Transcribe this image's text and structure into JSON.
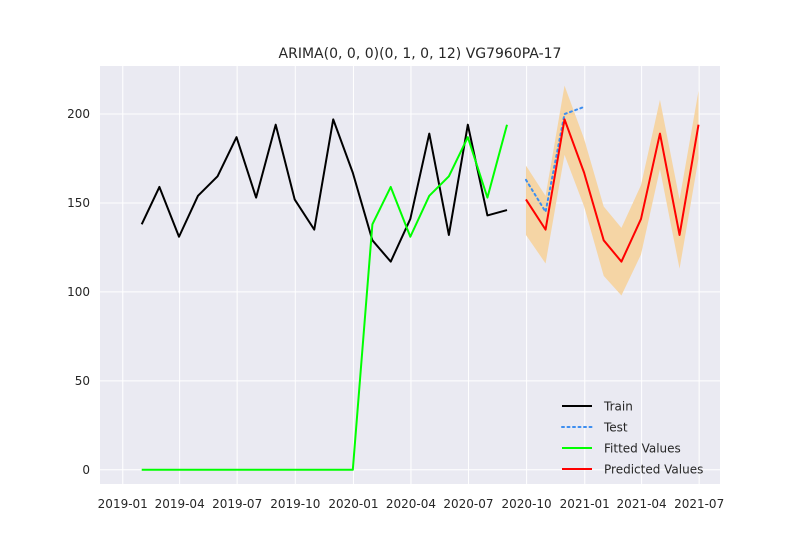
{
  "chart_data": {
    "type": "line",
    "title": "ARIMA(0, 0, 0)(0, 1, 0, 12) VG7960PA-17",
    "xlabel": "",
    "ylabel": "",
    "x_tick_labels": [
      "2019-01",
      "2019-04",
      "2019-07",
      "2019-10",
      "2020-01",
      "2020-04",
      "2020-07",
      "2020-10",
      "2021-01",
      "2021-04",
      "2021-07"
    ],
    "x_ticks": [
      "2019-01-01",
      "2019-04-01",
      "2019-07-01",
      "2019-10-01",
      "2020-01-01",
      "2020-04-01",
      "2020-07-01",
      "2020-10-01",
      "2021-01-01",
      "2021-04-01",
      "2021-07-01"
    ],
    "y_ticks": [
      0,
      50,
      100,
      150,
      200
    ],
    "xlim": [
      "2018-11-26",
      "2021-08-03"
    ],
    "ylim": [
      -8,
      227
    ],
    "grid": true,
    "legend_position": "lower-right",
    "series": [
      {
        "name": "Train",
        "color": "#000000",
        "style": "solid",
        "x": [
          "2019-01-31",
          "2019-02-28",
          "2019-03-31",
          "2019-04-30",
          "2019-05-31",
          "2019-06-30",
          "2019-07-31",
          "2019-08-31",
          "2019-09-30",
          "2019-10-31",
          "2019-11-30",
          "2019-12-31",
          "2020-01-31",
          "2020-02-29",
          "2020-03-31",
          "2020-04-30",
          "2020-05-31",
          "2020-06-30",
          "2020-07-31",
          "2020-08-31"
        ],
        "values": [
          138,
          159,
          131,
          154,
          165,
          187,
          153,
          194,
          152,
          135,
          197,
          167,
          129,
          117,
          141,
          189,
          132,
          194,
          143,
          146
        ]
      },
      {
        "name": "Test",
        "color": "#3d8ef0",
        "style": "dotted",
        "x": [
          "2020-09-30",
          "2020-10-31",
          "2020-11-30",
          "2020-12-31"
        ],
        "values": [
          163,
          145,
          200,
          204
        ]
      },
      {
        "name": "Fitted Values",
        "color": "#00ff00",
        "style": "solid",
        "x": [
          "2019-01-31",
          "2019-02-28",
          "2019-03-31",
          "2019-04-30",
          "2019-05-31",
          "2019-06-30",
          "2019-07-31",
          "2019-08-31",
          "2019-09-30",
          "2019-10-31",
          "2019-11-30",
          "2019-12-31",
          "2020-01-31",
          "2020-02-29",
          "2020-03-31",
          "2020-04-30",
          "2020-05-31",
          "2020-06-30",
          "2020-07-31",
          "2020-08-31"
        ],
        "values": [
          0,
          0,
          0,
          0,
          0,
          0,
          0,
          0,
          0,
          0,
          0,
          0,
          138,
          159,
          131,
          154,
          165,
          187,
          153,
          194
        ]
      },
      {
        "name": "Predicted Values",
        "color": "#ff0000",
        "style": "solid",
        "x": [
          "2020-09-30",
          "2020-10-31",
          "2020-11-30",
          "2020-12-31",
          "2021-01-31",
          "2021-02-28",
          "2021-03-31",
          "2021-04-30",
          "2021-05-31",
          "2021-06-30"
        ],
        "values": [
          152,
          135,
          197,
          167,
          129,
          117,
          141,
          189,
          132,
          194
        ],
        "lower": [
          132,
          116,
          177,
          148,
          109,
          98,
          121,
          169,
          113,
          175
        ],
        "upper": [
          171,
          154,
          216,
          186,
          148,
          136,
          160,
          208,
          152,
          213
        ]
      }
    ],
    "band_color": "#f5d5a5"
  }
}
